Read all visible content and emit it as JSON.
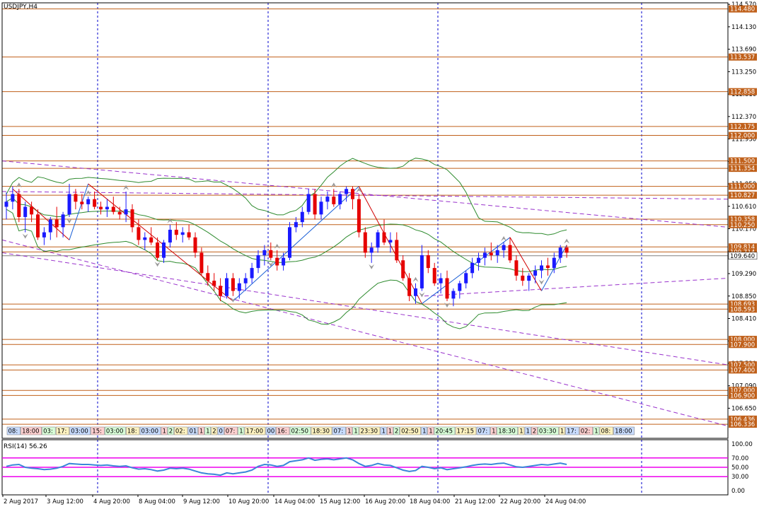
{
  "window": {
    "symbol_title": "USDJPY,H4",
    "indicator_title": "RSI(14) 56.26"
  },
  "colors": {
    "bull": "#1a1aff",
    "bear": "#e60000",
    "level": "#c0601a",
    "bands": "#2e8b2e",
    "zigzag_up": "#1a5fd6",
    "zigzag_down": "#d00000",
    "channel": "#9932cc",
    "grid": "#0000cc",
    "rsi_line": "#3a86d8",
    "rsi_levels": "#ee00ee"
  },
  "chart_data": {
    "type": "candlestick",
    "symbol": "USDJPY",
    "timeframe": "H4",
    "ylim": [
      106.06,
      114.6
    ],
    "price_ticks": [
      "114.570",
      "114.130",
      "113.690",
      "113.250",
      "112.810",
      "112.370",
      "111.930",
      "111.490",
      "111.050",
      "110.610",
      "110.170",
      "109.730",
      "109.290",
      "108.850",
      "108.410",
      "107.970",
      "107.530",
      "107.090",
      "106.650"
    ],
    "x_labels": [
      "2 Aug 2017",
      "3 Aug 12:00",
      "4 Aug 20:00",
      "8 Aug 04:00",
      "9 Aug 12:00",
      "10 Aug 20:00",
      "14 Aug 04:00",
      "15 Aug 12:00",
      "16 Aug 20:00",
      "18 Aug 04:00",
      "21 Aug 12:00",
      "22 Aug 20:00",
      "24 Aug 04:00"
    ],
    "horizontal_levels": [
      "114.480",
      "113.537",
      "112.858",
      "112.175",
      "112.000",
      "111.500",
      "111.354",
      "111.000",
      "110.827",
      "110.358",
      "110.250",
      "109.814",
      "109.714",
      "108.693",
      "108.593",
      "108.000",
      "107.900",
      "107.500",
      "107.400",
      "107.000",
      "106.900",
      "106.436",
      "106.336"
    ],
    "current_price": "109.640",
    "candles": [
      [
        110.6,
        110.88,
        110.35,
        110.7
      ],
      [
        110.7,
        111.0,
        110.55,
        110.85
      ],
      [
        110.85,
        110.95,
        110.3,
        110.4
      ],
      [
        110.4,
        110.7,
        110.1,
        110.6
      ],
      [
        110.6,
        110.7,
        110.3,
        110.45
      ],
      [
        110.45,
        110.55,
        109.95,
        110.0
      ],
      [
        110.0,
        110.2,
        109.85,
        110.1
      ],
      [
        110.1,
        110.4,
        109.95,
        110.35
      ],
      [
        110.35,
        110.6,
        110.0,
        110.2
      ],
      [
        110.2,
        110.5,
        110.0,
        110.45
      ],
      [
        110.45,
        111.05,
        110.4,
        110.85
      ],
      [
        110.85,
        110.95,
        110.55,
        110.7
      ],
      [
        110.7,
        110.85,
        110.55,
        110.65
      ],
      [
        110.65,
        110.8,
        110.5,
        110.75
      ],
      [
        110.75,
        110.9,
        110.55,
        110.6
      ],
      [
        110.6,
        110.7,
        110.45,
        110.55
      ],
      [
        110.55,
        110.75,
        110.4,
        110.6
      ],
      [
        110.6,
        110.8,
        110.45,
        110.5
      ],
      [
        110.5,
        110.6,
        110.35,
        110.45
      ],
      [
        110.45,
        110.9,
        110.3,
        110.55
      ],
      [
        110.55,
        110.65,
        110.1,
        110.2
      ],
      [
        110.2,
        110.35,
        109.85,
        109.95
      ],
      [
        109.95,
        110.1,
        109.75,
        110.0
      ],
      [
        110.0,
        110.2,
        109.85,
        109.9
      ],
      [
        109.9,
        110.0,
        109.55,
        109.6
      ],
      [
        109.6,
        109.95,
        109.5,
        109.9
      ],
      [
        109.9,
        110.25,
        109.8,
        110.15
      ],
      [
        110.15,
        110.3,
        109.95,
        110.05
      ],
      [
        110.05,
        110.2,
        109.9,
        110.1
      ],
      [
        110.1,
        110.25,
        109.95,
        110.0
      ],
      [
        110.0,
        110.1,
        109.6,
        109.7
      ],
      [
        109.7,
        109.8,
        109.25,
        109.3
      ],
      [
        109.3,
        109.45,
        109.05,
        109.15
      ],
      [
        109.15,
        109.3,
        108.95,
        109.05
      ],
      [
        109.05,
        109.2,
        108.75,
        108.85
      ],
      [
        108.85,
        109.3,
        108.8,
        109.2
      ],
      [
        109.2,
        109.3,
        108.85,
        108.95
      ],
      [
        108.95,
        109.2,
        108.8,
        109.1
      ],
      [
        109.1,
        109.3,
        108.95,
        109.2
      ],
      [
        109.2,
        109.5,
        109.1,
        109.4
      ],
      [
        109.4,
        109.75,
        109.3,
        109.65
      ],
      [
        109.65,
        109.85,
        109.45,
        109.75
      ],
      [
        109.75,
        109.9,
        109.55,
        109.6
      ],
      [
        109.6,
        109.75,
        109.35,
        109.45
      ],
      [
        109.45,
        109.7,
        109.35,
        109.6
      ],
      [
        109.6,
        110.3,
        109.55,
        110.2
      ],
      [
        110.2,
        110.4,
        110.1,
        110.3
      ],
      [
        110.3,
        110.6,
        110.2,
        110.5
      ],
      [
        110.5,
        110.95,
        110.45,
        110.85
      ],
      [
        110.85,
        110.95,
        110.35,
        110.45
      ],
      [
        110.45,
        110.8,
        110.35,
        110.7
      ],
      [
        110.7,
        110.9,
        110.55,
        110.8
      ],
      [
        110.8,
        110.95,
        110.6,
        110.65
      ],
      [
        110.65,
        110.9,
        110.55,
        110.85
      ],
      [
        110.85,
        111.0,
        110.7,
        110.95
      ],
      [
        110.95,
        111.0,
        110.55,
        110.75
      ],
      [
        110.75,
        110.85,
        110.0,
        110.1
      ],
      [
        110.1,
        110.2,
        109.6,
        109.7
      ],
      [
        109.7,
        109.9,
        109.5,
        109.8
      ],
      [
        109.8,
        110.15,
        109.7,
        110.1
      ],
      [
        110.1,
        110.35,
        109.85,
        109.9
      ],
      [
        109.9,
        110.1,
        109.7,
        109.95
      ],
      [
        109.95,
        110.1,
        109.5,
        109.55
      ],
      [
        109.55,
        109.65,
        109.15,
        109.2
      ],
      [
        109.2,
        109.3,
        108.75,
        108.85
      ],
      [
        108.85,
        109.1,
        108.7,
        109.0
      ],
      [
        109.0,
        109.85,
        108.95,
        109.65
      ],
      [
        109.65,
        109.75,
        109.3,
        109.4
      ],
      [
        109.4,
        109.5,
        109.05,
        109.1
      ],
      [
        109.1,
        109.3,
        108.9,
        109.2
      ],
      [
        109.2,
        109.35,
        108.75,
        108.8
      ],
      [
        108.8,
        109.0,
        108.65,
        108.95
      ],
      [
        108.95,
        109.15,
        108.8,
        109.1
      ],
      [
        109.1,
        109.35,
        109.0,
        109.3
      ],
      [
        109.3,
        109.6,
        109.2,
        109.5
      ],
      [
        109.5,
        109.7,
        109.35,
        109.6
      ],
      [
        109.6,
        109.8,
        109.45,
        109.7
      ],
      [
        109.7,
        109.9,
        109.55,
        109.65
      ],
      [
        109.65,
        109.85,
        109.5,
        109.75
      ],
      [
        109.75,
        109.9,
        109.6,
        109.85
      ],
      [
        109.85,
        110.0,
        109.5,
        109.55
      ],
      [
        109.55,
        109.65,
        109.15,
        109.25
      ],
      [
        109.25,
        109.4,
        109.05,
        109.15
      ],
      [
        109.15,
        109.3,
        108.95,
        109.25
      ],
      [
        109.25,
        109.45,
        109.1,
        109.35
      ],
      [
        109.35,
        109.55,
        109.2,
        109.45
      ],
      [
        109.45,
        109.6,
        109.25,
        109.4
      ],
      [
        109.4,
        109.7,
        109.3,
        109.6
      ],
      [
        109.6,
        109.85,
        109.5,
        109.8
      ],
      [
        109.8,
        109.85,
        109.6,
        109.7
      ]
    ],
    "rsi": {
      "name": "RSI(14)",
      "current": 56.26,
      "levels": [
        70,
        50,
        30
      ],
      "ticks": [
        "100.00",
        "70.00",
        "50.00",
        "30.00",
        "0.00"
      ],
      "values": [
        52,
        55,
        56,
        50,
        48,
        47,
        45,
        46,
        48,
        52,
        58,
        57,
        56,
        56,
        55,
        54,
        55,
        53,
        52,
        53,
        49,
        46,
        47,
        45,
        42,
        44,
        48,
        47,
        48,
        46,
        42,
        38,
        36,
        35,
        33,
        38,
        36,
        38,
        40,
        44,
        52,
        56,
        55,
        52,
        54,
        62,
        64,
        66,
        70,
        65,
        67,
        68,
        66,
        68,
        70,
        66,
        58,
        52,
        54,
        58,
        55,
        54,
        49,
        44,
        41,
        43,
        52,
        50,
        47,
        49,
        45,
        47,
        49,
        51,
        54,
        56,
        57,
        56,
        58,
        59,
        55,
        51,
        50,
        52,
        54,
        56,
        55,
        57,
        59,
        56
      ]
    }
  },
  "time_strip": {
    "labels": [
      "08:",
      "18:00",
      "03:",
      "17:",
      "03:00",
      "15:",
      "03:00",
      "18:",
      "03:00",
      "1",
      "2",
      "02:",
      "01",
      "1",
      "1",
      "2",
      "0",
      "07:",
      "1",
      "17:00",
      "00",
      "16:",
      "02:50",
      "18:30",
      "07:",
      "1",
      "1",
      "23:30",
      "1",
      "1",
      "2",
      "02:50",
      "1",
      "1",
      "20:45",
      "17:15",
      "07:",
      "1",
      "18:30",
      "1",
      "1",
      "2",
      "03:30",
      "1",
      "17:",
      "02:",
      "1",
      "08:",
      "18:00",
      ":30",
      "17:00",
      ":00"
    ]
  }
}
